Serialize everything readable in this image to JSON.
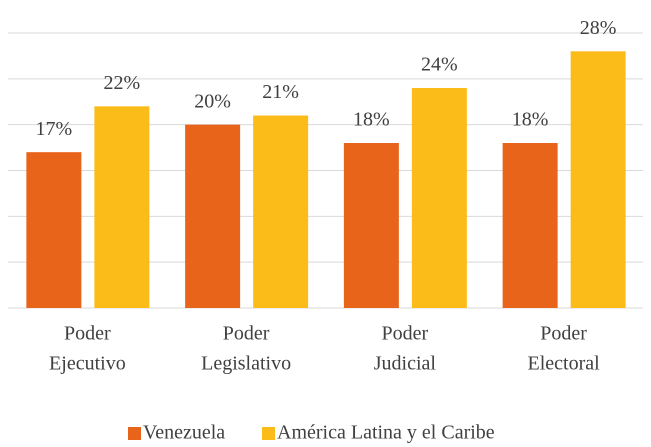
{
  "chart_data": {
    "type": "bar",
    "categories": [
      [
        "Poder",
        "Ejecutivo"
      ],
      [
        "Poder",
        "Legislativo"
      ],
      [
        "Poder",
        "Judicial"
      ],
      [
        "Poder",
        "Electoral"
      ]
    ],
    "series": [
      {
        "name": "Venezuela",
        "color": "#e8641b",
        "values": [
          17,
          20,
          18,
          18
        ],
        "value_labels": [
          "17%",
          "20%",
          "18%",
          "18%"
        ]
      },
      {
        "name": "América Latina y el Caribe",
        "color": "#fbbc1a",
        "values": [
          22,
          21,
          24,
          28
        ],
        "value_labels": [
          "22%",
          "21%",
          "24%",
          "28%"
        ]
      }
    ],
    "ylim": [
      0,
      30
    ],
    "yticks": [
      0,
      5,
      10,
      15,
      20,
      25,
      30
    ],
    "grid": true
  }
}
